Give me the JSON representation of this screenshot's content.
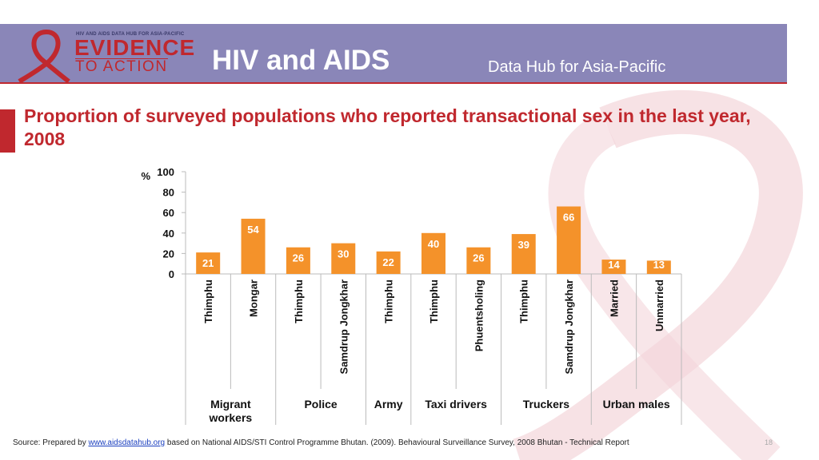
{
  "header": {
    "logo_top": "HIV AND AIDS DATA HUB FOR ASIA-PACIFIC",
    "logo_line1": "EVIDENCE",
    "logo_line2": "TO ACTION",
    "title": "HIV and AIDS",
    "subtitle": "Data Hub for Asia-Pacific"
  },
  "colors": {
    "bar": "#f4922a",
    "header_bg": "#8a86b8",
    "accent": "#c0282e"
  },
  "chart_data": {
    "type": "bar",
    "title": "Proportion of surveyed populations who reported transactional sex in the last year, 2008",
    "ylabel": "%",
    "ylim": [
      0,
      100
    ],
    "yticks": [
      0,
      20,
      40,
      60,
      80,
      100
    ],
    "categories": [
      "Thimphu",
      "Mongar",
      "Thimphu",
      "Samdrup Jongkhar",
      "Thimphu",
      "Thimphu",
      "Phuentsholing",
      "Thimphu",
      "Samdrup Jongkhar",
      "Married",
      "Unmarried"
    ],
    "values": [
      21,
      54,
      26,
      30,
      22,
      40,
      26,
      39,
      66,
      14,
      13
    ],
    "groups": [
      {
        "label": "Migrant workers",
        "start": 0,
        "count": 2
      },
      {
        "label": "Police",
        "start": 2,
        "count": 2
      },
      {
        "label": "Army",
        "start": 4,
        "count": 1
      },
      {
        "label": "Taxi drivers",
        "start": 5,
        "count": 2
      },
      {
        "label": "Truckers",
        "start": 7,
        "count": 2
      },
      {
        "label": "Urban males",
        "start": 9,
        "count": 2
      }
    ]
  },
  "footer": {
    "prefix": "Source: Prepared by ",
    "link": "www.aidsdatahub.org",
    "suffix": " based on National AIDS/STI Control Programme Bhutan. (2009). Behavioural Surveillance Survey, 2008 Bhutan - Technical Report",
    "page": "18"
  }
}
